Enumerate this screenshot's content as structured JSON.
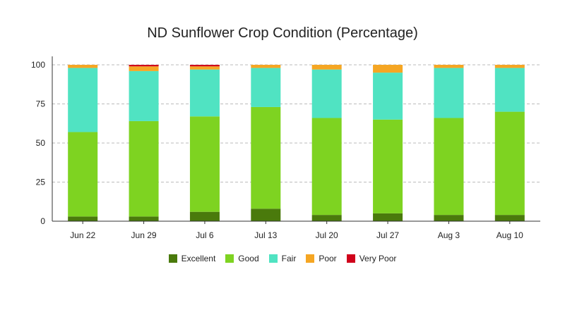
{
  "chart_data": {
    "type": "bar",
    "stacked": true,
    "title": "ND Sunflower Crop Condition (Percentage)",
    "xlabel": "",
    "ylabel": "",
    "ylim": [
      0,
      100
    ],
    "yticks": [
      0,
      25,
      50,
      75,
      100
    ],
    "grid": true,
    "legend_position": "bottom",
    "categories": [
      "Jun 22",
      "Jun 29",
      "Jul 6",
      "Jul 13",
      "Jul 20",
      "Jul 27",
      "Aug 3",
      "Aug 10"
    ],
    "series": [
      {
        "name": "Excellent",
        "color": "#4a7a0c",
        "values": [
          3,
          3,
          6,
          8,
          4,
          5,
          4,
          4
        ]
      },
      {
        "name": "Good",
        "color": "#7ed321",
        "values": [
          54,
          61,
          61,
          65,
          62,
          60,
          62,
          66
        ]
      },
      {
        "name": "Fair",
        "color": "#50e3c2",
        "values": [
          41,
          32,
          30,
          25,
          31,
          30,
          32,
          28
        ]
      },
      {
        "name": "Poor",
        "color": "#f5a623",
        "values": [
          2,
          3,
          2,
          2,
          3,
          5,
          2,
          2
        ]
      },
      {
        "name": "Very Poor",
        "color": "#d0021b",
        "values": [
          0,
          1,
          1,
          0,
          0,
          0,
          0,
          0
        ]
      }
    ]
  }
}
